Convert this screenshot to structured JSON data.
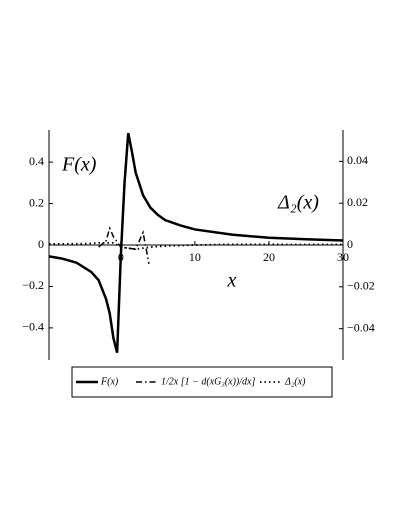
{
  "chart_data": {
    "type": "line",
    "annotations": [
      "F(x)",
      "Δ₂(x)"
    ],
    "xlabel": "x",
    "xlim": [
      -9.7,
      30
    ],
    "xticks": [
      0,
      10,
      20,
      30
    ],
    "ylim": [
      -0.555,
      0.555
    ],
    "yticks": [
      {
        "value": -0.4,
        "label": "−0.4"
      },
      {
        "value": -0.2,
        "label": "−0.2"
      },
      0,
      0.2,
      0.4
    ],
    "y2lim": [
      -0.055,
      0.055
    ],
    "y2ticks": [
      {
        "value": -0.04,
        "label": "−0.04"
      },
      {
        "value": -0.02,
        "label": "−0.02"
      },
      0,
      0.02,
      0.04
    ],
    "series": [
      {
        "name": "F(x)",
        "color": "#000000",
        "style": "solid",
        "x": [
          -9.7,
          -8,
          -6,
          -4,
          -3,
          -2,
          -1.5,
          -1,
          -0.5,
          0,
          0.5,
          1,
          1.5,
          2,
          3,
          4,
          5,
          6,
          8,
          10,
          15,
          20,
          25,
          30
        ],
        "values": [
          -0.055,
          -0.065,
          -0.085,
          -0.13,
          -0.17,
          -0.26,
          -0.33,
          -0.45,
          -0.52,
          -0.05,
          0.3,
          0.54,
          0.45,
          0.35,
          0.24,
          0.18,
          0.145,
          0.12,
          0.095,
          0.075,
          0.05,
          0.035,
          0.028,
          0.022
        ]
      },
      {
        "name": "1/2x [1 − d(xG₃(x))/dx]",
        "color": "#000000",
        "style": "dashdot",
        "axis": "y2",
        "x": [
          -3,
          -2,
          -1.5,
          -1,
          0,
          2,
          3,
          3.8
        ],
        "values": [
          -0.001,
          0.002,
          0.008,
          0.004,
          -0.001,
          -0.002,
          0.006,
          -0.009
        ]
      },
      {
        "name": "Δ₂(x)",
        "color": "#000000",
        "style": "dotted",
        "axis": "y2",
        "x": [
          -9.7,
          -5,
          -3,
          -1,
          0,
          2,
          4,
          6,
          10,
          15,
          20,
          25,
          30
        ],
        "values": [
          0.0005,
          0.0006,
          0.001,
          0.001,
          -0.001,
          -0.002,
          -0.001,
          -0.0005,
          0,
          0.0003,
          0.0003,
          0.0002,
          0.0002
        ]
      }
    ]
  }
}
